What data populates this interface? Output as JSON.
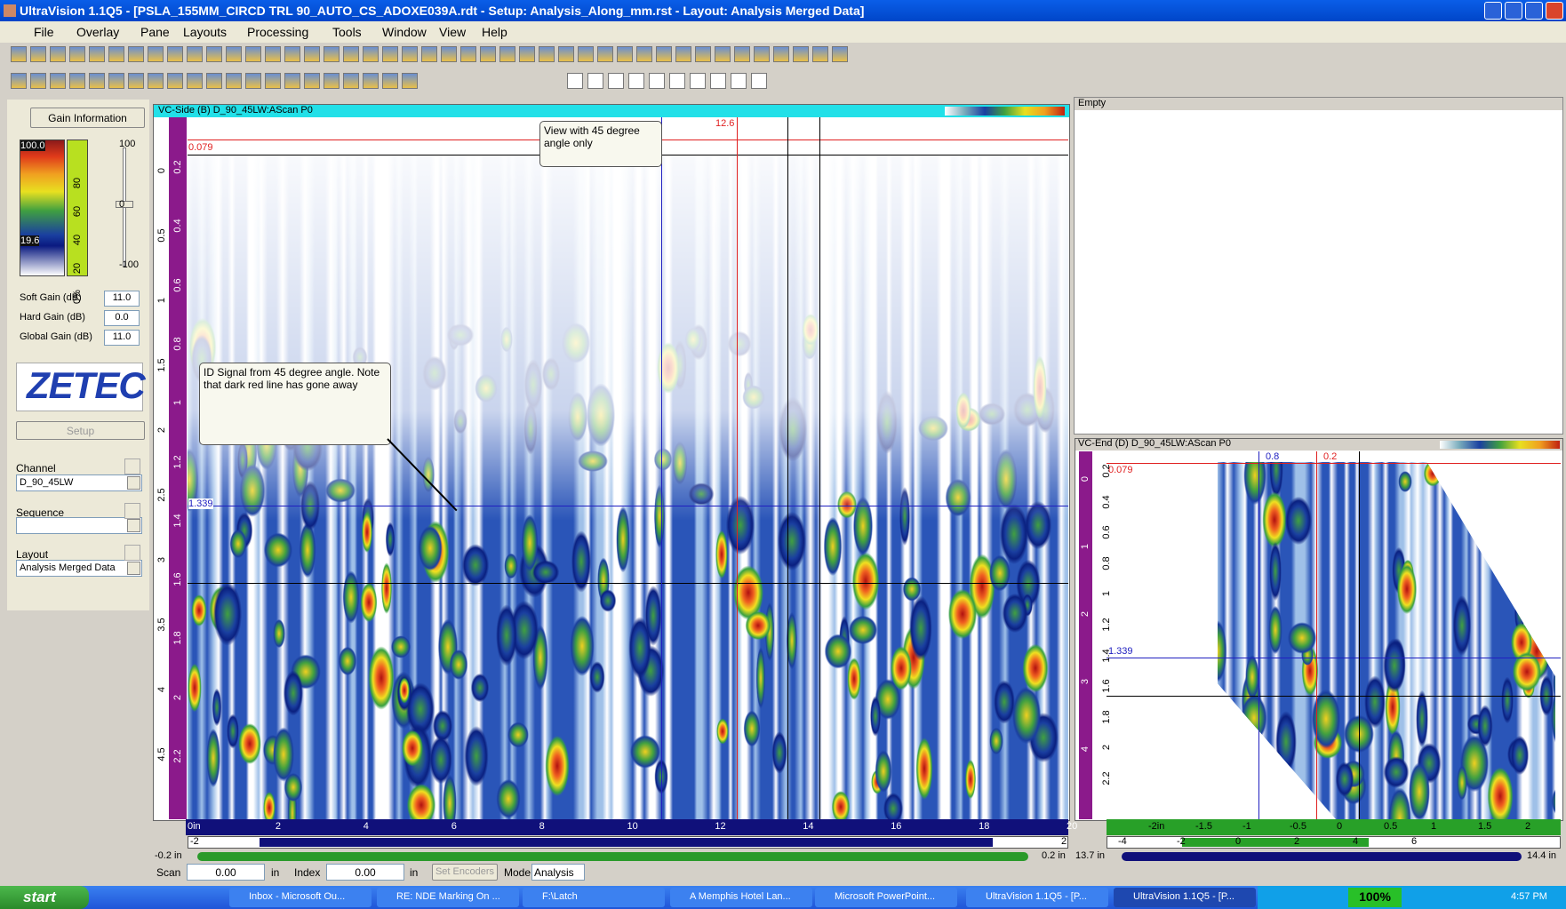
{
  "window": {
    "title": "UltraVision 1.1Q5 - [PSLA_155MM_CIRCD TRL 90_AUTO_CS_ADOXE039A.rdt - Setup: Analysis_Along_mm.rst - Layout: Analysis Merged Data]"
  },
  "menu": [
    "File",
    "Overlay",
    "Pane",
    "Layouts",
    "Processing",
    "Tools",
    "Window",
    "View",
    "Help"
  ],
  "left_panel": {
    "gain_button": "Gain Information",
    "palette_max": "100.0",
    "palette_min": "19.6",
    "scale_labels": [
      "80",
      "60",
      "40",
      "20",
      "0%"
    ],
    "slider_labels": [
      "100",
      "0",
      "-100"
    ],
    "fields": [
      {
        "label": "Soft Gain (dB)",
        "value": "11.0"
      },
      {
        "label": "Hard Gain (dB)",
        "value": "0.0"
      },
      {
        "label": "Global Gain (dB)",
        "value": "11.0"
      }
    ],
    "logo": "ZETEC",
    "setup": "Setup",
    "channel_label": "Channel",
    "channel": "D_90_45LW",
    "sequence_label": "Sequence",
    "layout_label": "Layout",
    "layout": "Analysis Merged Data"
  },
  "side_view": {
    "title": "VC-Side (B) D_90_45LW:AScan P0",
    "cursor_top": "0.079",
    "cursor_bottom": "1.339",
    "cursor_index": "12.6",
    "annotation_1": "View with 45 degree angle only",
    "annotation_2": "ID Signal from 45 degree angle. Note that dark red line has gone away",
    "y_ticks": [
      "0.2",
      "0.4",
      "0.6",
      "0.8",
      "1",
      "1.2",
      "1.4",
      "1.6",
      "1.8",
      "2",
      "2.2"
    ],
    "y_outer_ticks": [
      "0",
      "0.5",
      "1",
      "1.5",
      "2",
      "2.5",
      "3",
      "3.5",
      "4",
      "4.5"
    ],
    "x_ticks": [
      "0in",
      "2",
      "4",
      "6",
      "8",
      "10",
      "12",
      "14",
      "16",
      "18",
      "20"
    ],
    "scroll_start": "-2",
    "scroll_end": "2",
    "range_min": "-0.2 in",
    "range_max": "0.2 in"
  },
  "empty_pane": {
    "title": "Empty"
  },
  "end_view": {
    "title": "VC-End (D) D_90_45LW:AScan P0",
    "cursor_a": "0.8",
    "cursor_b": "0.2",
    "cursor_top": "0.079",
    "cursor_bottom": "1.339",
    "y_ticks": [
      "0.2",
      "0.4",
      "0.6",
      "0.8",
      "1",
      "1.2",
      "1.4",
      "1.6",
      "1.8",
      "2",
      "2.2"
    ],
    "y_outer_ticks": [
      "0",
      "1",
      "2",
      "3",
      "4"
    ],
    "x_ticks": [
      "-2in",
      "-1.5",
      "-1",
      "-0.5",
      "0",
      "0.5",
      "1",
      "1.5",
      "2"
    ],
    "scroll_labels": [
      "-4",
      "-2",
      "0",
      "2",
      "4",
      "6"
    ],
    "range_min": "13.7 in",
    "range_max": "14.4 in"
  },
  "status": {
    "scan_label": "Scan",
    "scan": "0.00",
    "scan_unit": "in",
    "index_label": "Index",
    "index": "0.00",
    "index_unit": "in",
    "set_encoders": "Set Encoders",
    "mode_label": "Mode",
    "mode": "Analysis"
  },
  "taskbar": {
    "start": "start",
    "items": [
      "Inbox - Microsoft Ou...",
      "RE: NDE Marking On ...",
      "F:\\Latch",
      "A Memphis Hotel Lan...",
      "Microsoft PowerPoint...",
      "UltraVision 1.1Q5 - [P...",
      "UltraVision 1.1Q5 - [P..."
    ],
    "zoom": "100%",
    "clock": "4:57 PM"
  }
}
